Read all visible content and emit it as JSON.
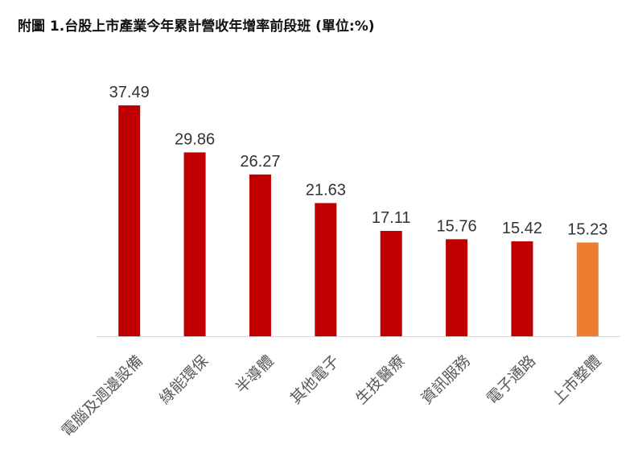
{
  "chart_data": {
    "type": "bar",
    "title": "附圖 1.台股上市產業今年累計營收年增率前段班 (單位:%)",
    "categories": [
      "電腦及週邊設備",
      "綠能環保",
      "半導體",
      "其他電子",
      "生技醫療",
      "資訊服務",
      "電子通路",
      "上市整體"
    ],
    "values": [
      37.49,
      29.86,
      26.27,
      21.63,
      17.11,
      15.76,
      15.42,
      15.23
    ],
    "value_labels": [
      "37.49",
      "29.86",
      "26.27",
      "21.63",
      "17.11",
      "15.76",
      "15.42",
      "15.23"
    ],
    "ylim": [
      0,
      37.49
    ],
    "colors": [
      "#c00000",
      "#c00000",
      "#c00000",
      "#c00000",
      "#c00000",
      "#c00000",
      "#c00000",
      "#ed7d31"
    ],
    "xlabel": "",
    "ylabel": "",
    "grid": false,
    "legend": "none"
  }
}
